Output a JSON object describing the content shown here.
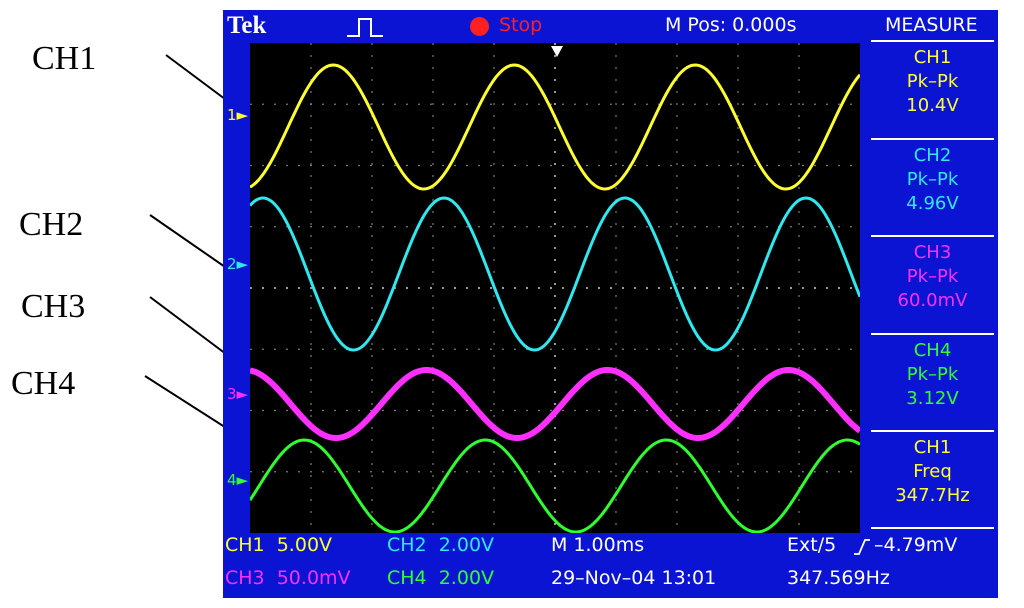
{
  "annotations": [
    "CH1",
    "CH2",
    "CH3",
    "CH4"
  ],
  "header": {
    "brand": "Tek",
    "state": "Stop",
    "mpos": "M Pos: 0.000s",
    "menu": "MEASURE"
  },
  "channel_markers": [
    "1",
    "2",
    "3",
    "4"
  ],
  "measurements": [
    {
      "ch": "CH1",
      "type": "Pk–Pk",
      "value": "10.4V",
      "color": "#ffff30"
    },
    {
      "ch": "CH2",
      "type": "Pk–Pk",
      "value": "4.96V",
      "color": "#30e8f0"
    },
    {
      "ch": "CH3",
      "type": "Pk–Pk",
      "value": "60.0mV",
      "color": "#ff30ff"
    },
    {
      "ch": "CH4",
      "type": "Pk–Pk",
      "value": "3.12V",
      "color": "#30ff30"
    },
    {
      "ch": "CH1",
      "type": "Freq",
      "value": "347.7Hz",
      "color": "#ffff30"
    }
  ],
  "status": {
    "ch1": "CH1  5.00V",
    "ch2": "CH2  2.00V",
    "ch3": "CH3  50.0mV",
    "ch4": "CH4  2.00V",
    "timebase": "M 1.00ms",
    "datetime": "29–Nov–04 13:01",
    "trigger": "Ext/5",
    "trigger_level": "–4.79mV",
    "trigger_freq": "347.569Hz"
  },
  "colors": {
    "ch1": "#ffff30",
    "ch2": "#30e8f0",
    "ch3": "#ff30ff",
    "ch4": "#30ff30",
    "bezel": "#0a14d2",
    "screen": "#000000"
  }
}
